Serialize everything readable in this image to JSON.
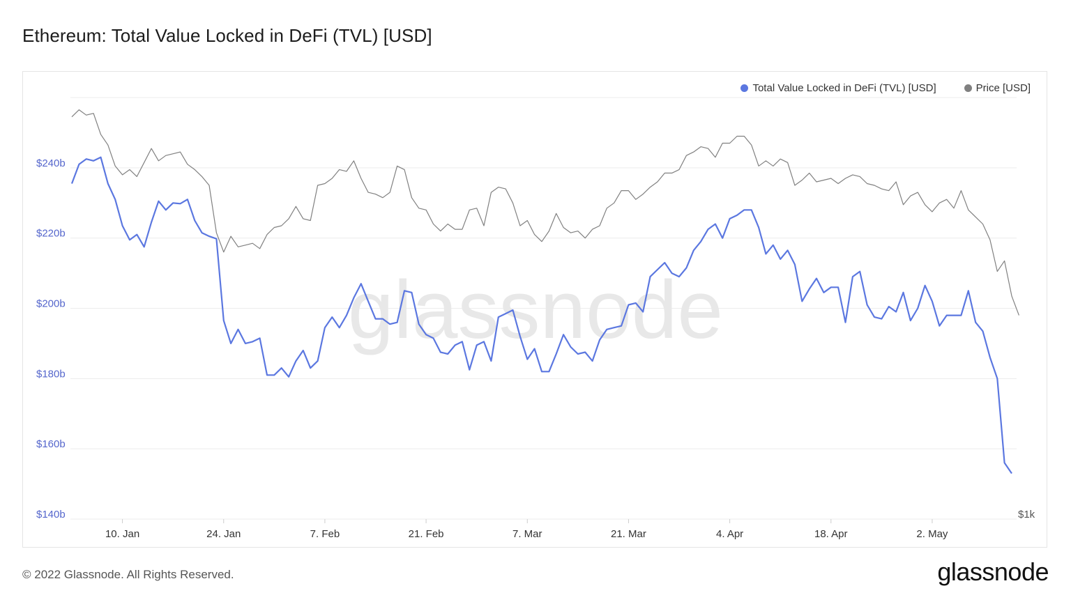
{
  "title": "Ethereum: Total Value Locked in DeFi (TVL) [USD]",
  "footer": "© 2022 Glassnode. All Rights Reserved.",
  "brand": "glassnode",
  "watermark": "glassnode",
  "colors": {
    "tvl": "#5b77e0",
    "price": "#808080",
    "grid": "#ececec",
    "axis_text": "#5566cc"
  },
  "legend": [
    {
      "label": "Total Value Locked in DeFi (TVL) [USD]",
      "color": "#5b77e0"
    },
    {
      "label": "Price [USD]",
      "color": "#808080"
    }
  ],
  "chart_data": {
    "type": "line",
    "title": "Ethereum: Total Value Locked in DeFi (TVL) [USD]",
    "x_start": "2022-01-03",
    "x_ticks": [
      "10. Jan",
      "24. Jan",
      "7. Feb",
      "21. Feb",
      "7. Mar",
      "21. Mar",
      "4. Apr",
      "18. Apr",
      "2. May"
    ],
    "y_ticks": [
      "$140b",
      "$160b",
      "$180b",
      "$200b",
      "$220b",
      "$240b"
    ],
    "ylim": [
      140,
      260
    ],
    "y2_ticks": [
      "$1k"
    ],
    "grid": true,
    "legend_position": "top-right",
    "series": [
      {
        "name": "Total Value Locked in DeFi (TVL) [USD]",
        "axis": "left",
        "unit": "billion USD",
        "values": [
          235.5,
          241,
          242.5,
          242,
          243,
          235.5,
          231,
          223.5,
          219.5,
          221,
          217.5,
          224.5,
          230.5,
          228,
          230,
          229.8,
          231,
          225,
          221.5,
          220.5,
          219.8,
          196.5,
          190,
          194,
          190,
          190.5,
          191.5,
          181,
          181,
          183,
          180.5,
          185,
          188,
          183,
          185,
          194.5,
          197.5,
          194.5,
          198,
          203,
          207,
          202,
          197,
          197,
          195.5,
          196,
          205,
          204.5,
          195.5,
          192.5,
          191.5,
          187.5,
          187,
          189.5,
          190.5,
          182.5,
          189.5,
          190.5,
          185,
          197.5,
          198.5,
          199.5,
          192,
          185.5,
          188.5,
          182,
          182,
          187,
          192.5,
          189,
          187,
          187.5,
          185,
          191,
          194,
          194.5,
          195,
          201,
          201.5,
          199,
          209,
          211,
          213,
          210,
          209,
          211.5,
          216.5,
          219,
          222.5,
          224,
          220,
          225.5,
          226.5,
          228,
          228,
          223,
          215.5,
          218,
          214,
          216.5,
          212.5,
          202,
          205.5,
          208.5,
          204.5,
          206,
          206,
          196,
          209,
          210.5,
          201,
          197.5,
          197,
          200.5,
          199,
          204.5,
          196.5,
          200,
          206.5,
          202,
          195,
          198,
          198,
          198,
          205,
          196,
          193.5,
          186,
          180,
          156,
          153
        ]
      },
      {
        "name": "Price [USD]",
        "axis": "right",
        "values": [
          254.5,
          256.5,
          255,
          255.5,
          249.5,
          246.5,
          240.5,
          238,
          239.5,
          237.5,
          241.5,
          245.5,
          242,
          243.5,
          244,
          244.5,
          241,
          239.5,
          237.5,
          235,
          221.5,
          216,
          220.5,
          217.5,
          218,
          218.5,
          217,
          221,
          223,
          223.5,
          225.5,
          229,
          225.5,
          225,
          235,
          235.5,
          237,
          239.5,
          239,
          242,
          237,
          233,
          232.5,
          231.5,
          233,
          240.5,
          239.5,
          231.5,
          228.5,
          228,
          224,
          222,
          224,
          222.5,
          222.5,
          228,
          228.5,
          223.5,
          233,
          234.5,
          234,
          230,
          223.5,
          225,
          221,
          219,
          222,
          227,
          223,
          221.5,
          222,
          220,
          222.5,
          223.5,
          228.5,
          230,
          233.5,
          233.5,
          231,
          232.5,
          234.5,
          236,
          238.5,
          238.5,
          239.5,
          243.5,
          244.5,
          246,
          245.5,
          243,
          247,
          247,
          249,
          249,
          246.5,
          240.5,
          242,
          240.5,
          242.5,
          241.5,
          235,
          236.5,
          238.5,
          236,
          236.5,
          237,
          235.5,
          237,
          238,
          237.5,
          235.5,
          235,
          234,
          233.5,
          236,
          229.5,
          232,
          233,
          229.5,
          227.5,
          230,
          231,
          228.5,
          233.5,
          228,
          226,
          224,
          219.5,
          210.5,
          213.5,
          203.5,
          198
        ]
      }
    ]
  }
}
